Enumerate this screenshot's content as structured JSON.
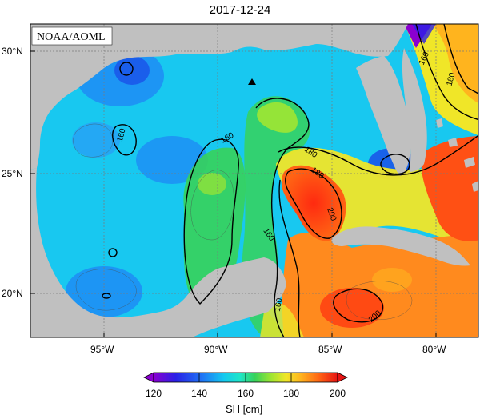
{
  "title": "2017-12-24",
  "source_label": "NOAA/AOML",
  "latitude_labels": [
    "30°N",
    "25°N",
    "20°N"
  ],
  "longitude_labels": [
    "95°W",
    "90°W",
    "85°W",
    "80°W"
  ],
  "contour_labels": [
    "160",
    "160",
    "160",
    "160",
    "180",
    "180",
    "200",
    "200",
    "180",
    "160"
  ],
  "colorbar": {
    "ticks": [
      "120",
      "140",
      "160",
      "180",
      "200"
    ],
    "unit": "SH [cm]",
    "colors": [
      "#8a00d0",
      "#2a20e6",
      "#1e78f5",
      "#14c8f0",
      "#1ee6c8",
      "#37d25a",
      "#a0e632",
      "#f0e628",
      "#ffb41e",
      "#ff6414",
      "#e61414"
    ]
  },
  "marker": "triangle-marker",
  "colors": {
    "land": "#c0c0c0",
    "grid": "#7a7a7a",
    "contour": "#000000"
  }
}
